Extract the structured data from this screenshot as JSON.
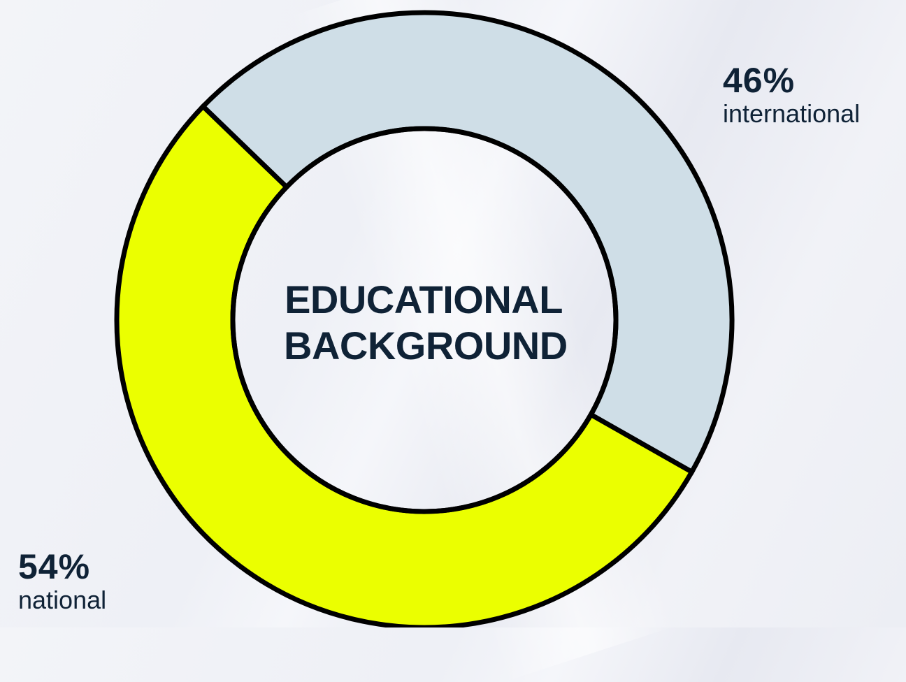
{
  "chart_data": {
    "type": "pie",
    "title_lines": [
      "EDUCATIONAL",
      "BACKGROUND"
    ],
    "slices": [
      {
        "label": "international",
        "value": 46,
        "value_label": "46%",
        "color": "#cfdee7"
      },
      {
        "label": "national",
        "value": 54,
        "value_label": "54%",
        "color": "#ebff00"
      }
    ],
    "stroke_color": "#000000",
    "donut": true
  }
}
